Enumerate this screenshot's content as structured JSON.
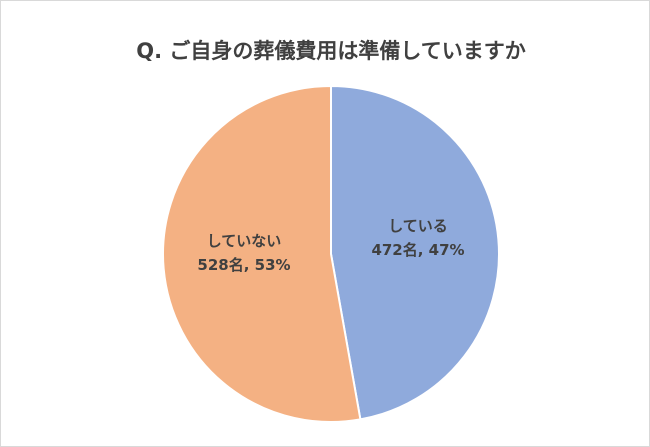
{
  "chart_data": {
    "type": "pie",
    "title": "Q. ご自身の葬儀費用は準備していますか",
    "categories": [
      "している",
      "していない"
    ],
    "values": [
      472,
      528
    ],
    "value_labels": [
      "472名, 47%",
      "528名, 53%"
    ],
    "colors": [
      "#8faadc",
      "#f4b183"
    ]
  }
}
